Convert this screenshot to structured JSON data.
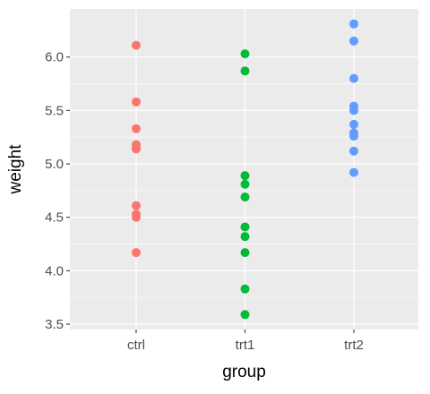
{
  "chart_data": {
    "type": "scatter",
    "xlabel": "group",
    "ylabel": "weight",
    "categories": [
      "ctrl",
      "trt1",
      "trt2"
    ],
    "ylim": [
      3.45,
      6.45
    ],
    "yticks": [
      3.5,
      4.0,
      4.5,
      5.0,
      5.5,
      6.0
    ],
    "ytick_labels": [
      "3.5",
      "4.0",
      "4.5",
      "5.0",
      "5.5",
      "6.0"
    ],
    "grid": true,
    "background": "#EBEBEB",
    "grid_color": "#FFFFFF",
    "colors": {
      "ctrl": "#F8766D",
      "trt1": "#00BA38",
      "trt2": "#619CFF"
    },
    "points": [
      {
        "group": "ctrl",
        "weight": 4.17
      },
      {
        "group": "ctrl",
        "weight": 5.58
      },
      {
        "group": "ctrl",
        "weight": 5.18
      },
      {
        "group": "ctrl",
        "weight": 6.11
      },
      {
        "group": "ctrl",
        "weight": 4.5
      },
      {
        "group": "ctrl",
        "weight": 4.61
      },
      {
        "group": "ctrl",
        "weight": 5.17
      },
      {
        "group": "ctrl",
        "weight": 4.53
      },
      {
        "group": "ctrl",
        "weight": 5.33
      },
      {
        "group": "ctrl",
        "weight": 5.14
      },
      {
        "group": "trt1",
        "weight": 4.81
      },
      {
        "group": "trt1",
        "weight": 4.17
      },
      {
        "group": "trt1",
        "weight": 4.41
      },
      {
        "group": "trt1",
        "weight": 3.59
      },
      {
        "group": "trt1",
        "weight": 5.87
      },
      {
        "group": "trt1",
        "weight": 3.83
      },
      {
        "group": "trt1",
        "weight": 6.03
      },
      {
        "group": "trt1",
        "weight": 4.89
      },
      {
        "group": "trt1",
        "weight": 4.32
      },
      {
        "group": "trt1",
        "weight": 4.69
      },
      {
        "group": "trt2",
        "weight": 6.31
      },
      {
        "group": "trt2",
        "weight": 5.12
      },
      {
        "group": "trt2",
        "weight": 5.54
      },
      {
        "group": "trt2",
        "weight": 5.5
      },
      {
        "group": "trt2",
        "weight": 5.37
      },
      {
        "group": "trt2",
        "weight": 5.29
      },
      {
        "group": "trt2",
        "weight": 4.92
      },
      {
        "group": "trt2",
        "weight": 6.15
      },
      {
        "group": "trt2",
        "weight": 5.8
      },
      {
        "group": "trt2",
        "weight": 5.26
      }
    ]
  }
}
